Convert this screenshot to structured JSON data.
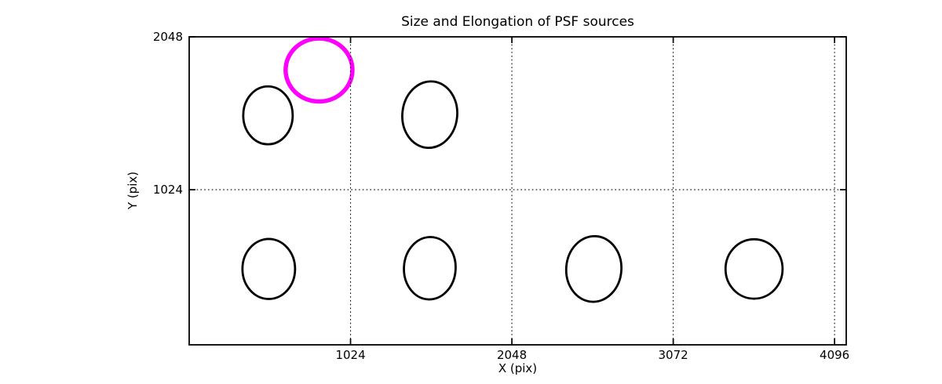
{
  "chart_data": {
    "type": "scatter",
    "title": "Size and Elongation of PSF sources",
    "xlabel": "X (pix)",
    "ylabel": "Y (pix)",
    "xlim": [
      0,
      4170
    ],
    "ylim": [
      -15,
      2048
    ],
    "xticks": [
      1024,
      2048,
      3072,
      4096
    ],
    "xtick_labels": [
      "1024",
      "2048",
      "3072",
      "4096"
    ],
    "yticks": [
      1024,
      2048
    ],
    "ytick_labels": [
      "1024",
      "2048"
    ],
    "grid": "dotted-both-axes",
    "legend": "none",
    "marker_shape": "ellipse-outline",
    "ellipses": [
      {
        "x": 824,
        "y": 1826,
        "rx": 212,
        "ry": 211,
        "angle": 0,
        "color": "#ff00ff",
        "line_width": 5.5,
        "role": "highlighted-source"
      },
      {
        "x": 500,
        "y": 1522,
        "rx": 157,
        "ry": 194,
        "angle": 0,
        "color": "#000000",
        "line_width": 2.8,
        "role": "psf-source"
      },
      {
        "x": 1527,
        "y": 1527,
        "rx": 174,
        "ry": 223,
        "angle": 6,
        "color": "#000000",
        "line_width": 2.8,
        "role": "psf-source"
      },
      {
        "x": 505,
        "y": 493,
        "rx": 167,
        "ry": 201,
        "angle": 0,
        "color": "#000000",
        "line_width": 2.8,
        "role": "psf-source"
      },
      {
        "x": 1527,
        "y": 498,
        "rx": 164,
        "ry": 209,
        "angle": 3,
        "color": "#000000",
        "line_width": 2.8,
        "role": "psf-source"
      },
      {
        "x": 2568,
        "y": 493,
        "rx": 175,
        "ry": 220,
        "angle": 4,
        "color": "#000000",
        "line_width": 2.8,
        "role": "psf-source"
      },
      {
        "x": 3585,
        "y": 493,
        "rx": 181,
        "ry": 199,
        "angle": 0,
        "color": "#000000",
        "line_width": 2.8,
        "role": "psf-source"
      }
    ],
    "colors": {
      "frame": "#000000",
      "grid": "#000000",
      "highlight": "#ff00ff",
      "source_outline": "#000000",
      "background": "#ffffff"
    }
  }
}
